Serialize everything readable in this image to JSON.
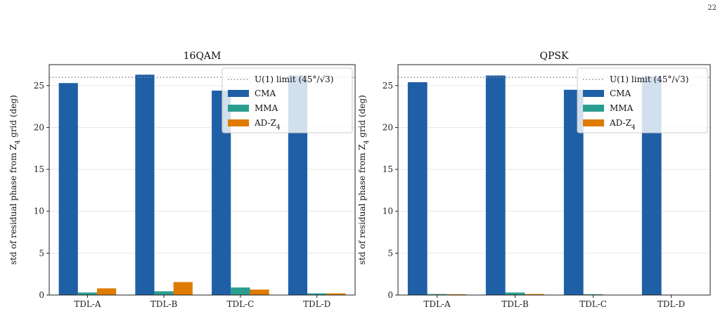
{
  "page_number": "22",
  "colors": {
    "CMA": "#1f5fa6",
    "MMA": "#2a9d8f",
    "AD": "#e07b00",
    "limit": "#888888",
    "grid": "#e6e6e6"
  },
  "chart_data": [
    {
      "type": "bar",
      "title": "16QAM",
      "ylabel": "std of residual phase from Z₄ grid (deg)",
      "ylim": [
        0,
        27.5
      ],
      "yticks": [
        0,
        5,
        10,
        15,
        20,
        25
      ],
      "grid": "horizontal",
      "legend_position": "top-right",
      "categories": [
        "TDL-A",
        "TDL-B",
        "TDL-C",
        "TDL-D"
      ],
      "series": [
        {
          "name": "CMA",
          "values": [
            25.3,
            26.3,
            24.4,
            26.2
          ]
        },
        {
          "name": "MMA",
          "values": [
            0.3,
            0.45,
            0.9,
            0.2
          ]
        },
        {
          "name": "AD-Z₄",
          "values": [
            0.8,
            1.55,
            0.65,
            0.2
          ]
        }
      ],
      "reference_line": {
        "name": "U(1) limit (45°/√3)",
        "value": 25.98,
        "style": "dotted"
      }
    },
    {
      "type": "bar",
      "title": "QPSK",
      "ylabel": "std of residual phase from Z₄ grid (deg)",
      "ylim": [
        0,
        27.5
      ],
      "yticks": [
        0,
        5,
        10,
        15,
        20,
        25
      ],
      "grid": "horizontal",
      "legend_position": "top-right",
      "categories": [
        "TDL-A",
        "TDL-B",
        "TDL-C",
        "TDL-D"
      ],
      "series": [
        {
          "name": "CMA",
          "values": [
            25.4,
            26.2,
            24.5,
            26.1
          ]
        },
        {
          "name": "MMA",
          "values": [
            0.12,
            0.3,
            0.1,
            0.03
          ]
        },
        {
          "name": "AD-Z₄",
          "values": [
            0.1,
            0.12,
            0.03,
            0.03
          ]
        }
      ],
      "reference_line": {
        "name": "U(1) limit (45°/√3)",
        "value": 25.98,
        "style": "dotted"
      }
    }
  ]
}
